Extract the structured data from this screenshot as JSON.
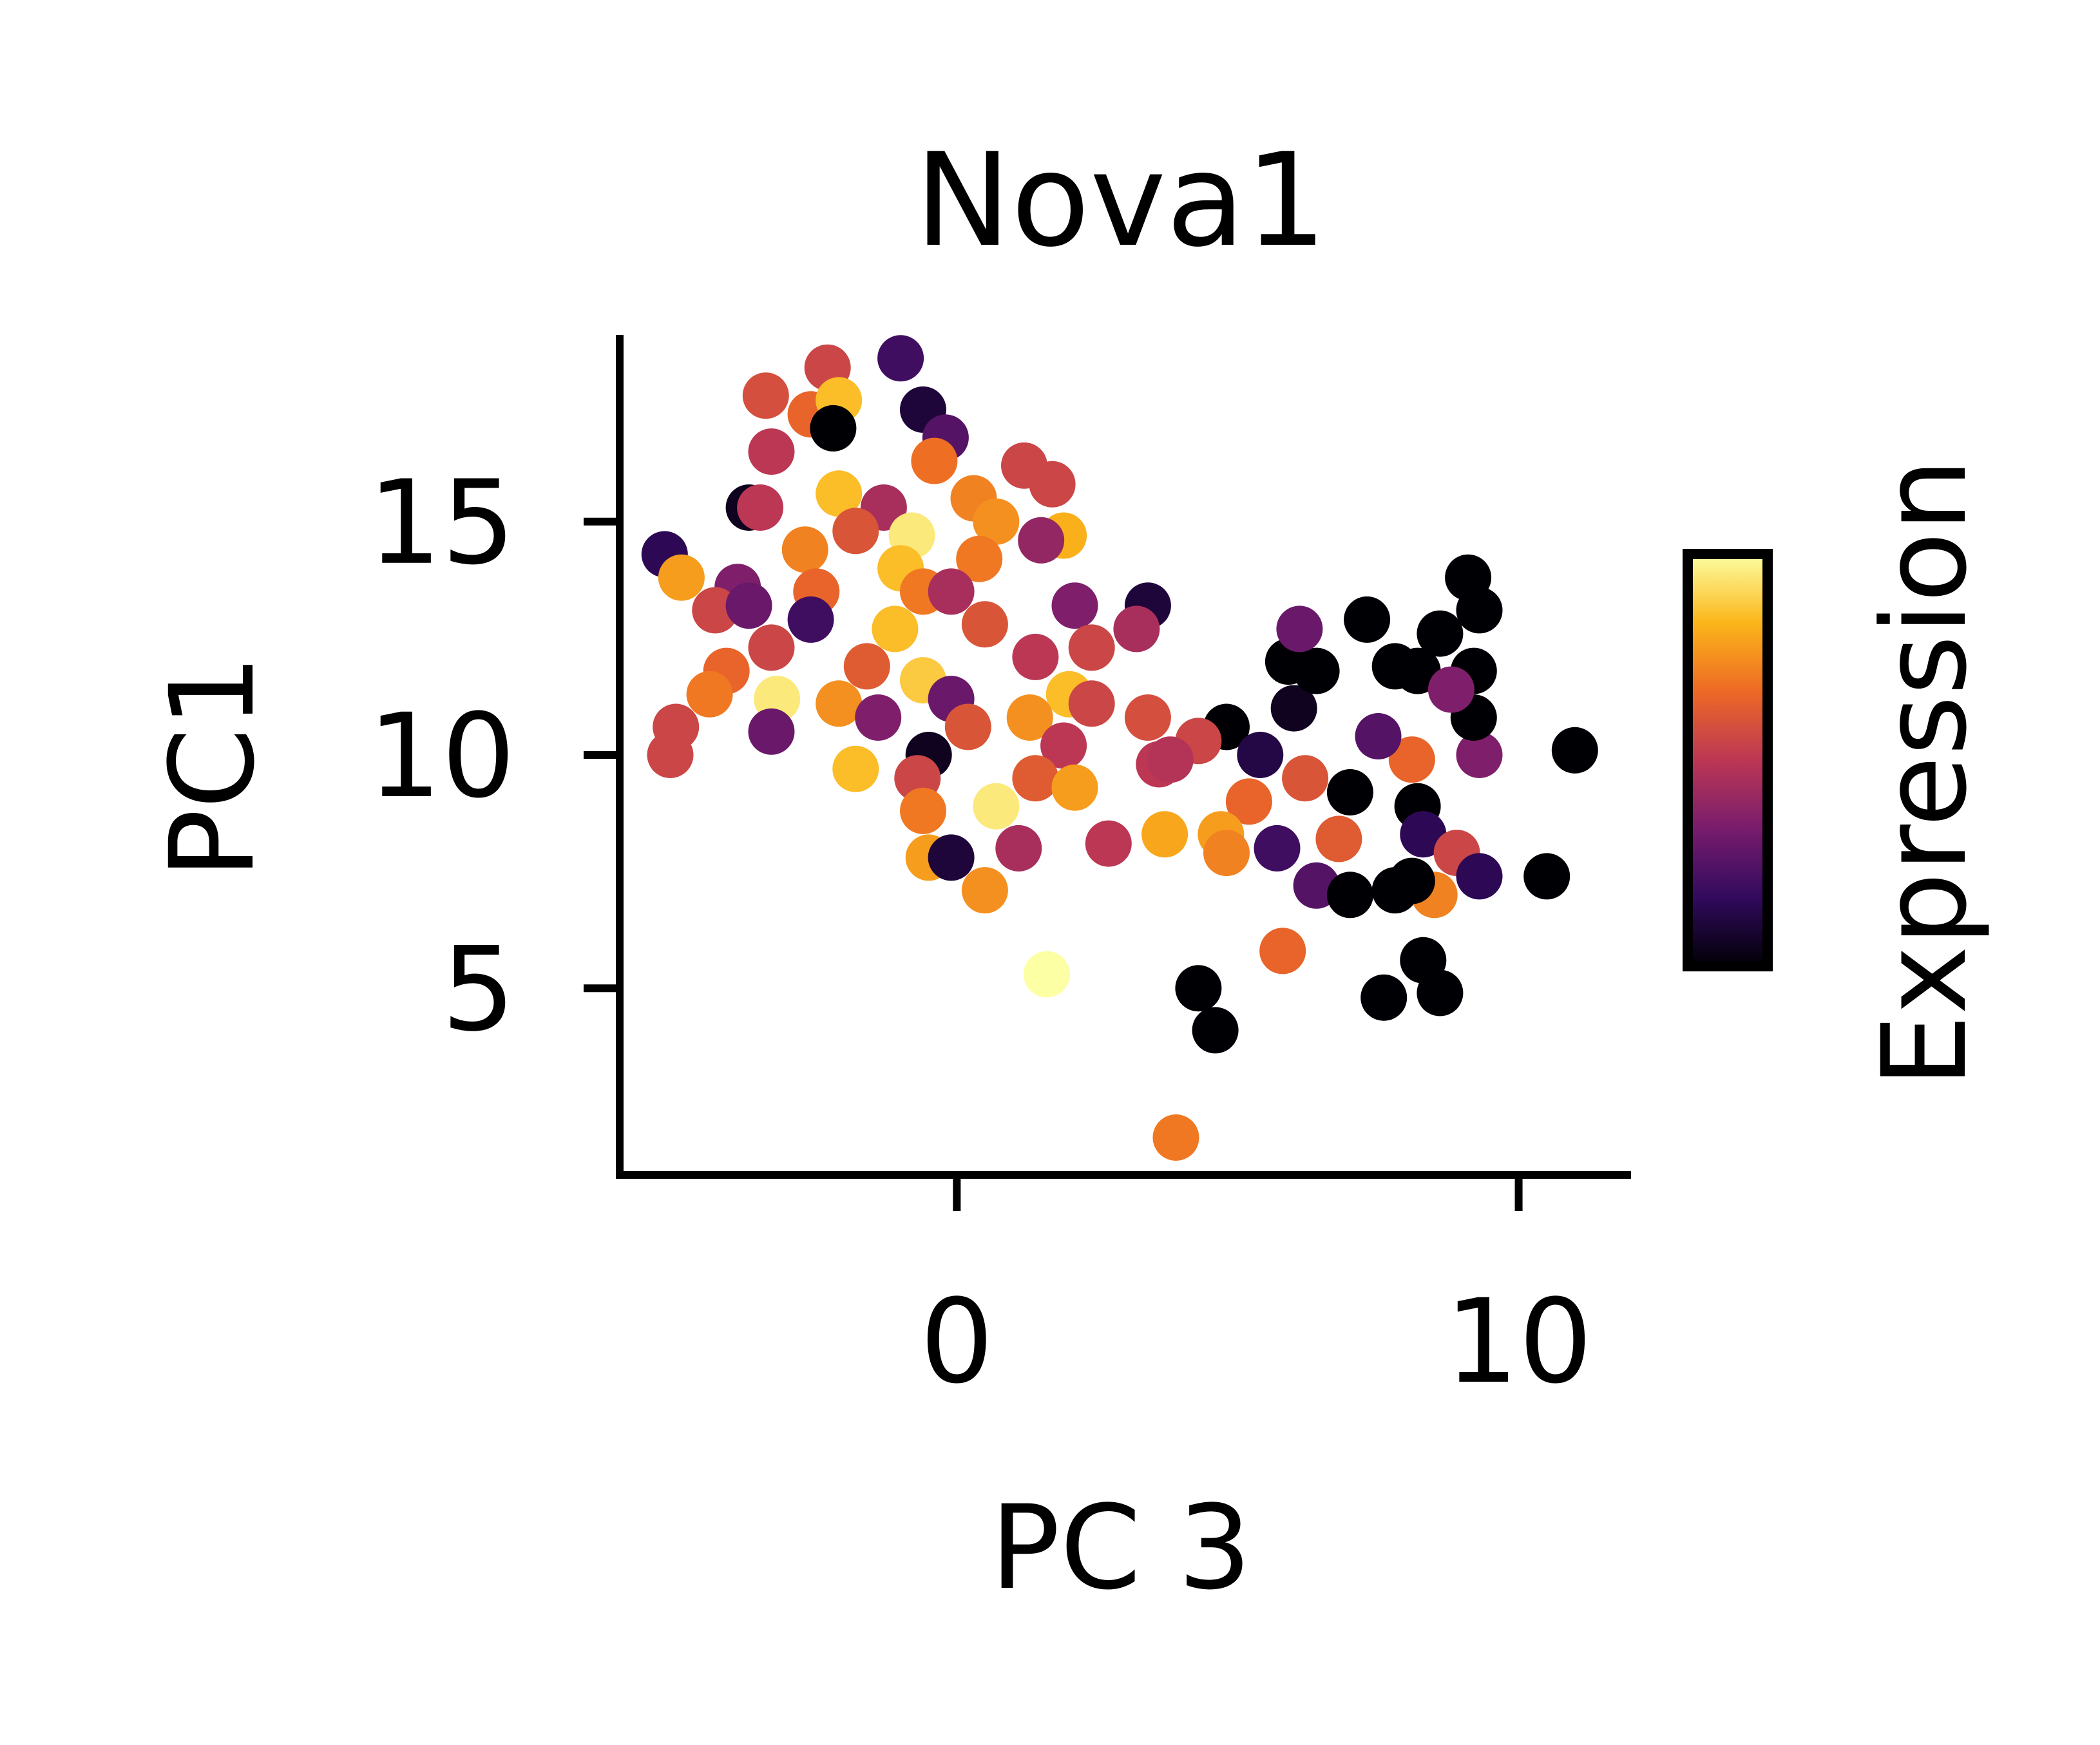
{
  "chart_data": {
    "type": "scatter",
    "title": "Nova1",
    "xlabel": "PC 3",
    "ylabel": "PC1",
    "xlim": [
      -6.0,
      12.0
    ],
    "ylim": [
      1.0,
      19.0
    ],
    "xticks": [
      0,
      10
    ],
    "xtick_labels": [
      "0",
      "10"
    ],
    "yticks": [
      5,
      10,
      15
    ],
    "ytick_labels": [
      "5",
      "10",
      "15"
    ],
    "grid": false,
    "colorbar": {
      "label": "Expression",
      "colormap": "inferno",
      "range": [
        0,
        1
      ],
      "stops": [
        "#000004",
        "#320a5e",
        "#781c6d",
        "#bc3754",
        "#ed6925",
        "#fbb61a",
        "#fcffa4"
      ]
    },
    "points": [
      {
        "x": -1.0,
        "y": 18.5,
        "c": 0.2
      },
      {
        "x": -2.3,
        "y": 18.3,
        "c": 0.55
      },
      {
        "x": -3.4,
        "y": 17.7,
        "c": 0.58
      },
      {
        "x": -2.6,
        "y": 17.3,
        "c": 0.65
      },
      {
        "x": -2.1,
        "y": 17.6,
        "c": 0.85
      },
      {
        "x": -0.6,
        "y": 17.4,
        "c": 0.1
      },
      {
        "x": -2.2,
        "y": 17.0,
        "c": 0.0
      },
      {
        "x": -0.2,
        "y": 16.8,
        "c": 0.25
      },
      {
        "x": -3.3,
        "y": 16.5,
        "c": 0.5
      },
      {
        "x": -0.4,
        "y": 16.3,
        "c": 0.68
      },
      {
        "x": 1.2,
        "y": 16.2,
        "c": 0.55
      },
      {
        "x": 1.7,
        "y": 15.8,
        "c": 0.55
      },
      {
        "x": -2.1,
        "y": 15.6,
        "c": 0.85
      },
      {
        "x": -1.3,
        "y": 15.3,
        "c": 0.45
      },
      {
        "x": -3.7,
        "y": 15.3,
        "c": 0.05
      },
      {
        "x": -3.5,
        "y": 15.3,
        "c": 0.5
      },
      {
        "x": 0.3,
        "y": 15.5,
        "c": 0.72
      },
      {
        "x": 0.7,
        "y": 15.0,
        "c": 0.75
      },
      {
        "x": 1.9,
        "y": 14.7,
        "c": 0.82
      },
      {
        "x": 1.5,
        "y": 14.6,
        "c": 0.4
      },
      {
        "x": -0.8,
        "y": 14.7,
        "c": 0.95
      },
      {
        "x": -1.8,
        "y": 14.8,
        "c": 0.6
      },
      {
        "x": -2.7,
        "y": 14.4,
        "c": 0.72
      },
      {
        "x": 0.4,
        "y": 14.2,
        "c": 0.7
      },
      {
        "x": -1.0,
        "y": 14.0,
        "c": 0.85
      },
      {
        "x": -5.2,
        "y": 14.3,
        "c": 0.15
      },
      {
        "x": -4.9,
        "y": 13.8,
        "c": 0.78
      },
      {
        "x": -3.9,
        "y": 13.6,
        "c": 0.35
      },
      {
        "x": -2.5,
        "y": 13.5,
        "c": 0.65
      },
      {
        "x": -0.6,
        "y": 13.5,
        "c": 0.7
      },
      {
        "x": -0.1,
        "y": 13.5,
        "c": 0.45
      },
      {
        "x": 2.1,
        "y": 13.2,
        "c": 0.35
      },
      {
        "x": 3.4,
        "y": 13.2,
        "c": 0.1
      },
      {
        "x": 3.2,
        "y": 12.7,
        "c": 0.45
      },
      {
        "x": -4.3,
        "y": 13.1,
        "c": 0.55
      },
      {
        "x": -3.7,
        "y": 13.2,
        "c": 0.3
      },
      {
        "x": -2.6,
        "y": 12.9,
        "c": 0.2
      },
      {
        "x": -1.1,
        "y": 12.7,
        "c": 0.85
      },
      {
        "x": 0.5,
        "y": 12.8,
        "c": 0.6
      },
      {
        "x": 2.4,
        "y": 12.3,
        "c": 0.55
      },
      {
        "x": -4.1,
        "y": 11.8,
        "c": 0.65
      },
      {
        "x": -3.3,
        "y": 12.3,
        "c": 0.55
      },
      {
        "x": -1.6,
        "y": 11.9,
        "c": 0.62
      },
      {
        "x": -0.6,
        "y": 11.6,
        "c": 0.88
      },
      {
        "x": 1.4,
        "y": 12.1,
        "c": 0.5
      },
      {
        "x": 2.0,
        "y": 11.3,
        "c": 0.85
      },
      {
        "x": -4.4,
        "y": 11.3,
        "c": 0.7
      },
      {
        "x": -3.2,
        "y": 11.2,
        "c": 0.95
      },
      {
        "x": -2.1,
        "y": 11.1,
        "c": 0.75
      },
      {
        "x": -0.1,
        "y": 11.2,
        "c": 0.3
      },
      {
        "x": 1.3,
        "y": 10.8,
        "c": 0.75
      },
      {
        "x": 2.4,
        "y": 11.1,
        "c": 0.55
      },
      {
        "x": 3.4,
        "y": 10.8,
        "c": 0.58
      },
      {
        "x": -5.0,
        "y": 10.6,
        "c": 0.55
      },
      {
        "x": -5.1,
        "y": 10.0,
        "c": 0.55
      },
      {
        "x": -3.3,
        "y": 10.5,
        "c": 0.3
      },
      {
        "x": -1.4,
        "y": 10.8,
        "c": 0.35
      },
      {
        "x": 0.2,
        "y": 10.6,
        "c": 0.6
      },
      {
        "x": 1.9,
        "y": 10.2,
        "c": 0.5
      },
      {
        "x": 3.6,
        "y": 9.8,
        "c": 0.5
      },
      {
        "x": 4.8,
        "y": 10.6,
        "c": 0.0
      },
      {
        "x": 5.4,
        "y": 10.0,
        "c": 0.12
      },
      {
        "x": 4.3,
        "y": 10.3,
        "c": 0.55
      },
      {
        "x": 3.8,
        "y": 9.9,
        "c": 0.48
      },
      {
        "x": -1.8,
        "y": 9.7,
        "c": 0.85
      },
      {
        "x": -0.5,
        "y": 10.0,
        "c": 0.05
      },
      {
        "x": -0.7,
        "y": 9.5,
        "c": 0.55
      },
      {
        "x": 1.4,
        "y": 9.5,
        "c": 0.62
      },
      {
        "x": 2.1,
        "y": 9.3,
        "c": 0.78
      },
      {
        "x": 0.7,
        "y": 8.9,
        "c": 0.95
      },
      {
        "x": -0.6,
        "y": 8.8,
        "c": 0.7
      },
      {
        "x": 5.2,
        "y": 9.0,
        "c": 0.65
      },
      {
        "x": 6.2,
        "y": 9.5,
        "c": 0.6
      },
      {
        "x": 7.0,
        "y": 9.2,
        "c": 0.0
      },
      {
        "x": 8.1,
        "y": 9.9,
        "c": 0.65
      },
      {
        "x": 7.5,
        "y": 10.4,
        "c": 0.25
      },
      {
        "x": 9.3,
        "y": 10.0,
        "c": 0.35
      },
      {
        "x": 11.0,
        "y": 10.1,
        "c": 0.0
      },
      {
        "x": 6.0,
        "y": 11.0,
        "c": 0.05
      },
      {
        "x": 6.4,
        "y": 11.8,
        "c": 0.0
      },
      {
        "x": 5.9,
        "y": 12.0,
        "c": 0.0
      },
      {
        "x": 6.1,
        "y": 12.7,
        "c": 0.3
      },
      {
        "x": 7.3,
        "y": 12.9,
        "c": 0.0
      },
      {
        "x": 7.8,
        "y": 11.9,
        "c": 0.0
      },
      {
        "x": 8.2,
        "y": 11.8,
        "c": 0.0
      },
      {
        "x": 8.6,
        "y": 12.6,
        "c": 0.0
      },
      {
        "x": 9.1,
        "y": 13.8,
        "c": 0.0
      },
      {
        "x": 9.3,
        "y": 13.1,
        "c": 0.0
      },
      {
        "x": 9.2,
        "y": 11.8,
        "c": 0.0
      },
      {
        "x": 9.2,
        "y": 10.8,
        "c": 0.0
      },
      {
        "x": 8.8,
        "y": 11.4,
        "c": 0.35
      },
      {
        "x": 2.7,
        "y": 8.1,
        "c": 0.5
      },
      {
        "x": 3.7,
        "y": 8.3,
        "c": 0.8
      },
      {
        "x": 4.7,
        "y": 8.3,
        "c": 0.78
      },
      {
        "x": 4.8,
        "y": 7.9,
        "c": 0.72
      },
      {
        "x": 5.7,
        "y": 8.0,
        "c": 0.2
      },
      {
        "x": 6.8,
        "y": 8.2,
        "c": 0.62
      },
      {
        "x": 8.2,
        "y": 8.9,
        "c": 0.0
      },
      {
        "x": 8.3,
        "y": 8.3,
        "c": 0.15
      },
      {
        "x": 8.9,
        "y": 7.9,
        "c": 0.55
      },
      {
        "x": 9.3,
        "y": 7.4,
        "c": 0.15
      },
      {
        "x": 10.5,
        "y": 7.4,
        "c": 0.0
      },
      {
        "x": 6.4,
        "y": 7.2,
        "c": 0.25
      },
      {
        "x": 7.0,
        "y": 7.0,
        "c": 0.0
      },
      {
        "x": 7.8,
        "y": 7.1,
        "c": 0.0
      },
      {
        "x": 8.5,
        "y": 7.0,
        "c": 0.72
      },
      {
        "x": 8.1,
        "y": 7.3,
        "c": 0.0
      },
      {
        "x": -0.5,
        "y": 7.8,
        "c": 0.78
      },
      {
        "x": -0.1,
        "y": 7.8,
        "c": 0.1
      },
      {
        "x": 1.1,
        "y": 8.0,
        "c": 0.45
      },
      {
        "x": 0.5,
        "y": 7.1,
        "c": 0.75
      },
      {
        "x": 1.6,
        "y": 5.3,
        "c": 1.0
      },
      {
        "x": 5.8,
        "y": 5.8,
        "c": 0.65
      },
      {
        "x": 4.3,
        "y": 5.0,
        "c": 0.0
      },
      {
        "x": 4.6,
        "y": 4.1,
        "c": 0.0
      },
      {
        "x": 7.6,
        "y": 4.8,
        "c": 0.0
      },
      {
        "x": 8.3,
        "y": 5.6,
        "c": 0.0
      },
      {
        "x": 8.6,
        "y": 4.9,
        "c": 0.0
      },
      {
        "x": 3.9,
        "y": 1.8,
        "c": 0.7
      }
    ]
  }
}
